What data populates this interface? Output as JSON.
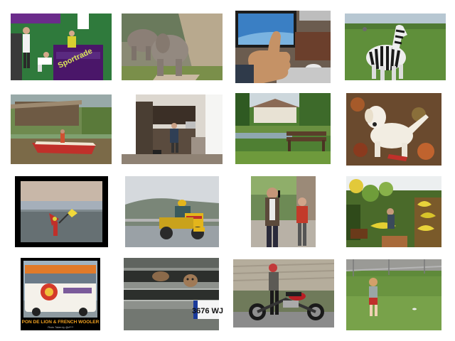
{
  "grid": {
    "rows": 4,
    "cols": 4,
    "background": "#ffffff",
    "tiles": [
      {
        "subject": "tennis-players-courtside",
        "icon": "tennis-icon",
        "text": {
          "sign": "Sportrade"
        }
      },
      {
        "subject": "elephants-walking",
        "icon": "elephant-icon",
        "text": {}
      },
      {
        "subject": "thumbs-up-at-computer",
        "icon": "thumbs-up-icon",
        "text": {}
      },
      {
        "subject": "zebra-in-field",
        "icon": "zebra-icon",
        "text": {}
      },
      {
        "subject": "boat-on-river",
        "icon": "boat-icon",
        "text": {}
      },
      {
        "subject": "kitchen-interior",
        "icon": "kitchen-icon",
        "text": {}
      },
      {
        "subject": "park-bench-with-house",
        "icon": "bench-icon",
        "text": {}
      },
      {
        "subject": "white-dog-on-leaves",
        "icon": "dog-icon",
        "text": {}
      },
      {
        "subject": "kite-on-beach",
        "icon": "kite-icon",
        "text": {}
      },
      {
        "subject": "scooter-rider-with-cargo",
        "icon": "scooter-icon",
        "text": {}
      },
      {
        "subject": "man-on-phone-street",
        "icon": "phone-icon",
        "text": {}
      },
      {
        "subject": "fruit-market-stall",
        "icon": "bananas-icon",
        "text": {}
      },
      {
        "subject": "decorated-bus",
        "icon": "bus-icon",
        "text": {
          "caption": "PON DE LION & FRENCH WOOLER",
          "credit": "Photo Taken by @d****"
        }
      },
      {
        "subject": "cats-in-truck-grille",
        "icon": "cat-icon",
        "text": {
          "plate": "3676 WJ"
        }
      },
      {
        "subject": "man-with-motorcycle",
        "icon": "motorcycle-icon",
        "text": {}
      },
      {
        "subject": "child-walking-on-grass",
        "icon": "child-icon",
        "text": {}
      }
    ]
  },
  "colors": {
    "court": "#2f7a3c",
    "purple": "#5a1a7a",
    "grass": "#5f8f3a",
    "sky": "#9fb8cc",
    "water": "#6a7f66",
    "boat_red": "#c0302a",
    "bus_orange": "#e07a2a",
    "motorcycle_red": "#b81f24"
  }
}
